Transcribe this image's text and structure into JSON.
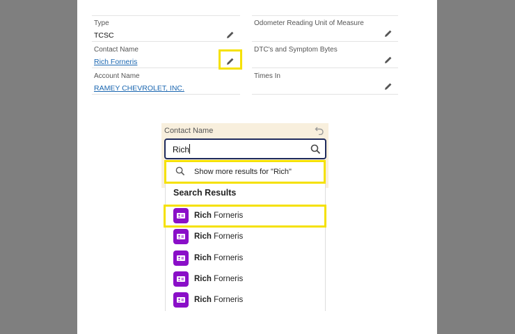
{
  "record_fields": {
    "left": [
      {
        "label": "Type",
        "value": "TCSC",
        "link": false
      },
      {
        "label": "Contact Name",
        "value": "Rich Forneris",
        "link": true
      },
      {
        "label": "Account Name",
        "value": "RAMEY CHEVROLET, INC.",
        "link": true
      }
    ],
    "right": [
      {
        "label": "Odometer Reading Unit of Measure",
        "value": ""
      },
      {
        "label": "DTC's and Symptom Bytes",
        "value": ""
      },
      {
        "label": "Times In",
        "value": ""
      }
    ]
  },
  "lookup": {
    "label": "Contact Name",
    "input_value": "Rich",
    "show_more": "Show more results for \"Rich\"",
    "results_heading": "Search Results",
    "results": [
      {
        "match": "Rich",
        "rest": " Forneris"
      },
      {
        "match": "Rich",
        "rest": " Forneris"
      },
      {
        "match": "Rich",
        "rest": " Forneris"
      },
      {
        "match": "Rich",
        "rest": " Forneris"
      },
      {
        "match": "Rich",
        "rest": " Forneris"
      }
    ]
  },
  "colors": {
    "highlight": "#f5e100",
    "contact_icon": "#8a0fc8",
    "link": "#1a66b0",
    "input_border": "#1e2a5c"
  }
}
